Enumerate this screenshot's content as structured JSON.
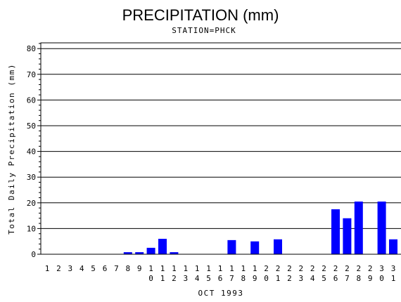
{
  "chart_data": {
    "type": "bar",
    "title": "PRECIPITATION (mm)",
    "subtitle": "STATION=PHCK",
    "xlabel": "OCT 1993",
    "ylabel": "Total Daily Precipitation (mm)",
    "categories": [
      "1",
      "2",
      "3",
      "4",
      "5",
      "6",
      "7",
      "8",
      "9",
      "10",
      "11",
      "12",
      "13",
      "14",
      "15",
      "16",
      "17",
      "18",
      "19",
      "20",
      "21",
      "22",
      "23",
      "24",
      "25",
      "26",
      "27",
      "28",
      "29",
      "30",
      "31"
    ],
    "values": [
      0,
      0,
      0,
      0,
      0,
      0,
      0,
      0.8,
      0.8,
      2.5,
      6,
      0.8,
      0,
      0,
      0,
      0,
      5.5,
      0,
      5,
      0,
      5.8,
      0,
      0,
      0,
      0,
      17.5,
      14,
      20.5,
      0,
      20.5,
      5.8
    ],
    "ylim": [
      0,
      82
    ],
    "yticks": [
      0,
      10,
      20,
      30,
      40,
      50,
      60,
      70,
      80
    ],
    "grid": true,
    "bar_color": "#0000ff"
  }
}
